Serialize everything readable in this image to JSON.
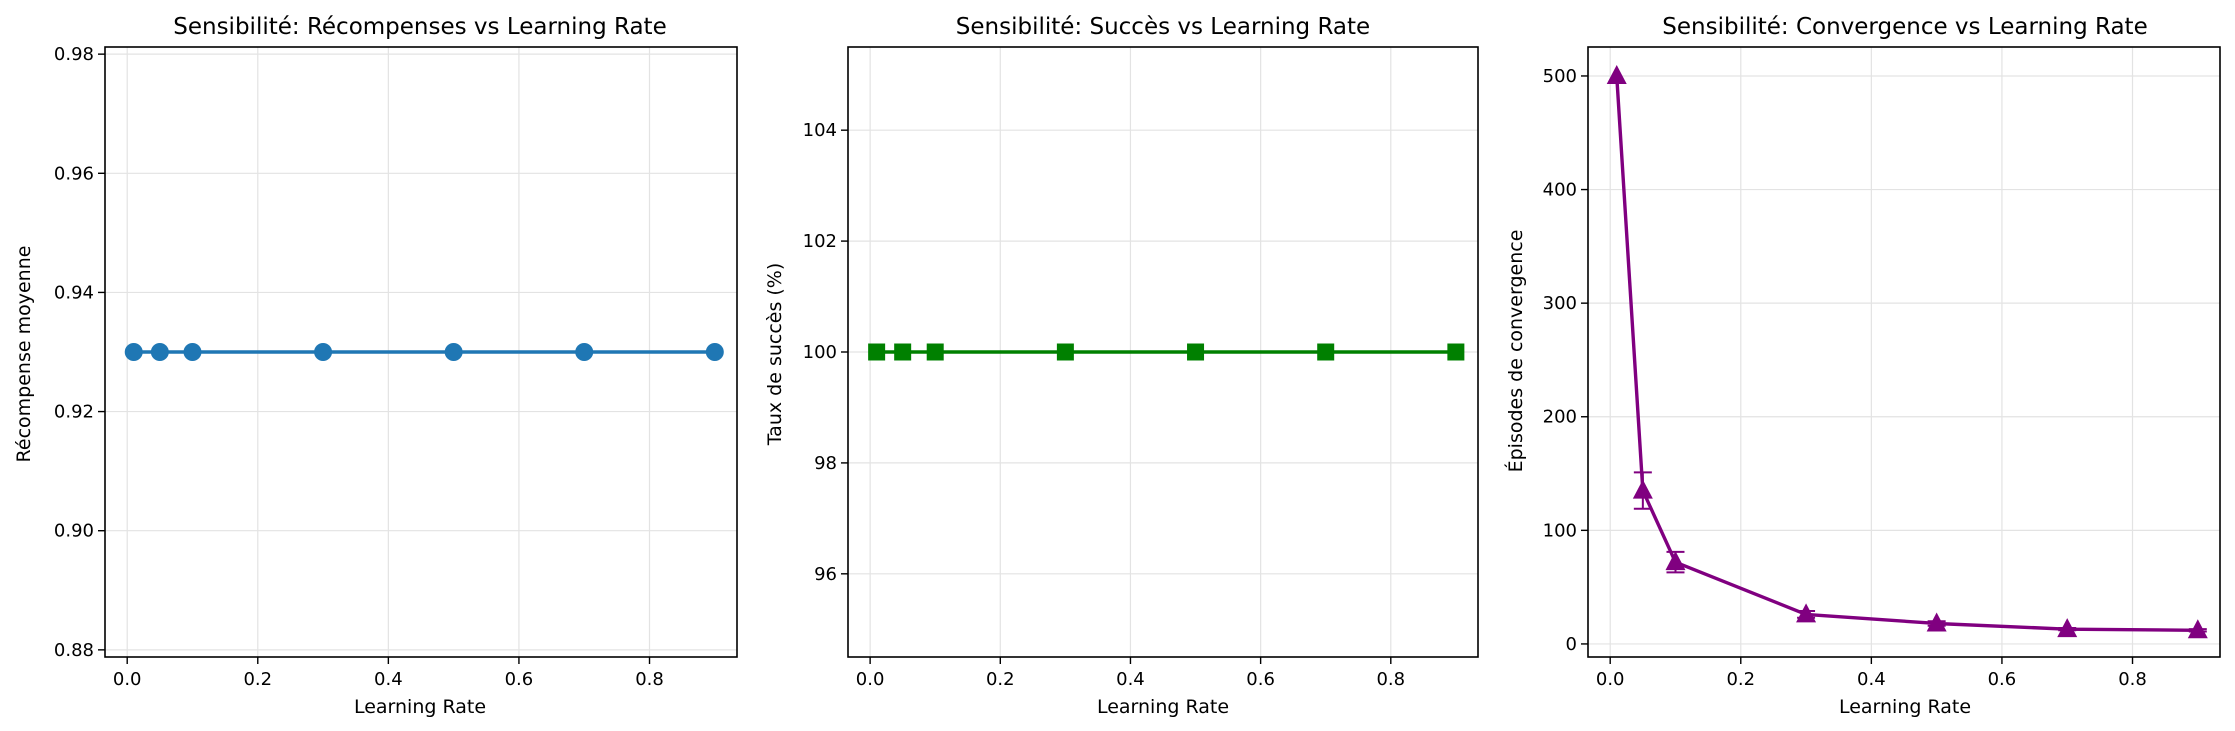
{
  "chart_data": [
    {
      "type": "line",
      "title": "Sensibilité: Récompenses vs Learning Rate",
      "xlabel": "Learning Rate",
      "ylabel": "Récompense moyenne",
      "xlim": [
        -0.034,
        0.934
      ],
      "ylim": [
        0.8788,
        0.9812
      ],
      "xticks": [
        0.0,
        0.2,
        0.4,
        0.6,
        0.8
      ],
      "xtick_labels": [
        "0.0",
        "0.2",
        "0.4",
        "0.6",
        "0.8"
      ],
      "yticks": [
        0.88,
        0.9,
        0.92,
        0.94,
        0.96,
        0.98
      ],
      "ytick_labels": [
        "0.88",
        "0.90",
        "0.92",
        "0.94",
        "0.96",
        "0.98"
      ],
      "grid": true,
      "series": [
        {
          "x": [
            0.01,
            0.05,
            0.1,
            0.3,
            0.5,
            0.7,
            0.9
          ],
          "values": [
            0.93,
            0.93,
            0.93,
            0.93,
            0.93,
            0.93,
            0.93
          ],
          "color": "#1f77b4",
          "marker": "circle"
        }
      ]
    },
    {
      "type": "line",
      "title": "Sensibilité: Succès vs Learning Rate",
      "xlabel": "Learning Rate",
      "ylabel": "Taux de succès (%)",
      "xlim": [
        -0.034,
        0.934
      ],
      "ylim": [
        94.5,
        105.5
      ],
      "xticks": [
        0.0,
        0.2,
        0.4,
        0.6,
        0.8
      ],
      "xtick_labels": [
        "0.0",
        "0.2",
        "0.4",
        "0.6",
        "0.8"
      ],
      "yticks": [
        96,
        98,
        100,
        102,
        104
      ],
      "ytick_labels": [
        "96",
        "98",
        "100",
        "102",
        "104"
      ],
      "grid": true,
      "series": [
        {
          "x": [
            0.01,
            0.05,
            0.1,
            0.3,
            0.5,
            0.7,
            0.9
          ],
          "values": [
            100,
            100,
            100,
            100,
            100,
            100,
            100
          ],
          "color": "#008000",
          "marker": "square"
        }
      ]
    },
    {
      "type": "line",
      "title": "Sensibilité: Convergence vs Learning Rate",
      "xlabel": "Learning Rate",
      "ylabel": "Épisodes de convergence",
      "xlim": [
        -0.034,
        0.934
      ],
      "ylim": [
        -11.5,
        525.5
      ],
      "xticks": [
        0.0,
        0.2,
        0.4,
        0.6,
        0.8
      ],
      "xtick_labels": [
        "0.0",
        "0.2",
        "0.4",
        "0.6",
        "0.8"
      ],
      "yticks": [
        0,
        100,
        200,
        300,
        400,
        500
      ],
      "ytick_labels": [
        "0",
        "100",
        "200",
        "300",
        "400",
        "500"
      ],
      "grid": true,
      "series": [
        {
          "x": [
            0.01,
            0.05,
            0.1,
            0.3,
            0.5,
            0.7,
            0.9
          ],
          "values": [
            500,
            135,
            72,
            26,
            18,
            13,
            12
          ],
          "errors": [
            0,
            16,
            9,
            3,
            2,
            1,
            1
          ],
          "color": "#800080",
          "marker": "triangle"
        }
      ]
    }
  ]
}
